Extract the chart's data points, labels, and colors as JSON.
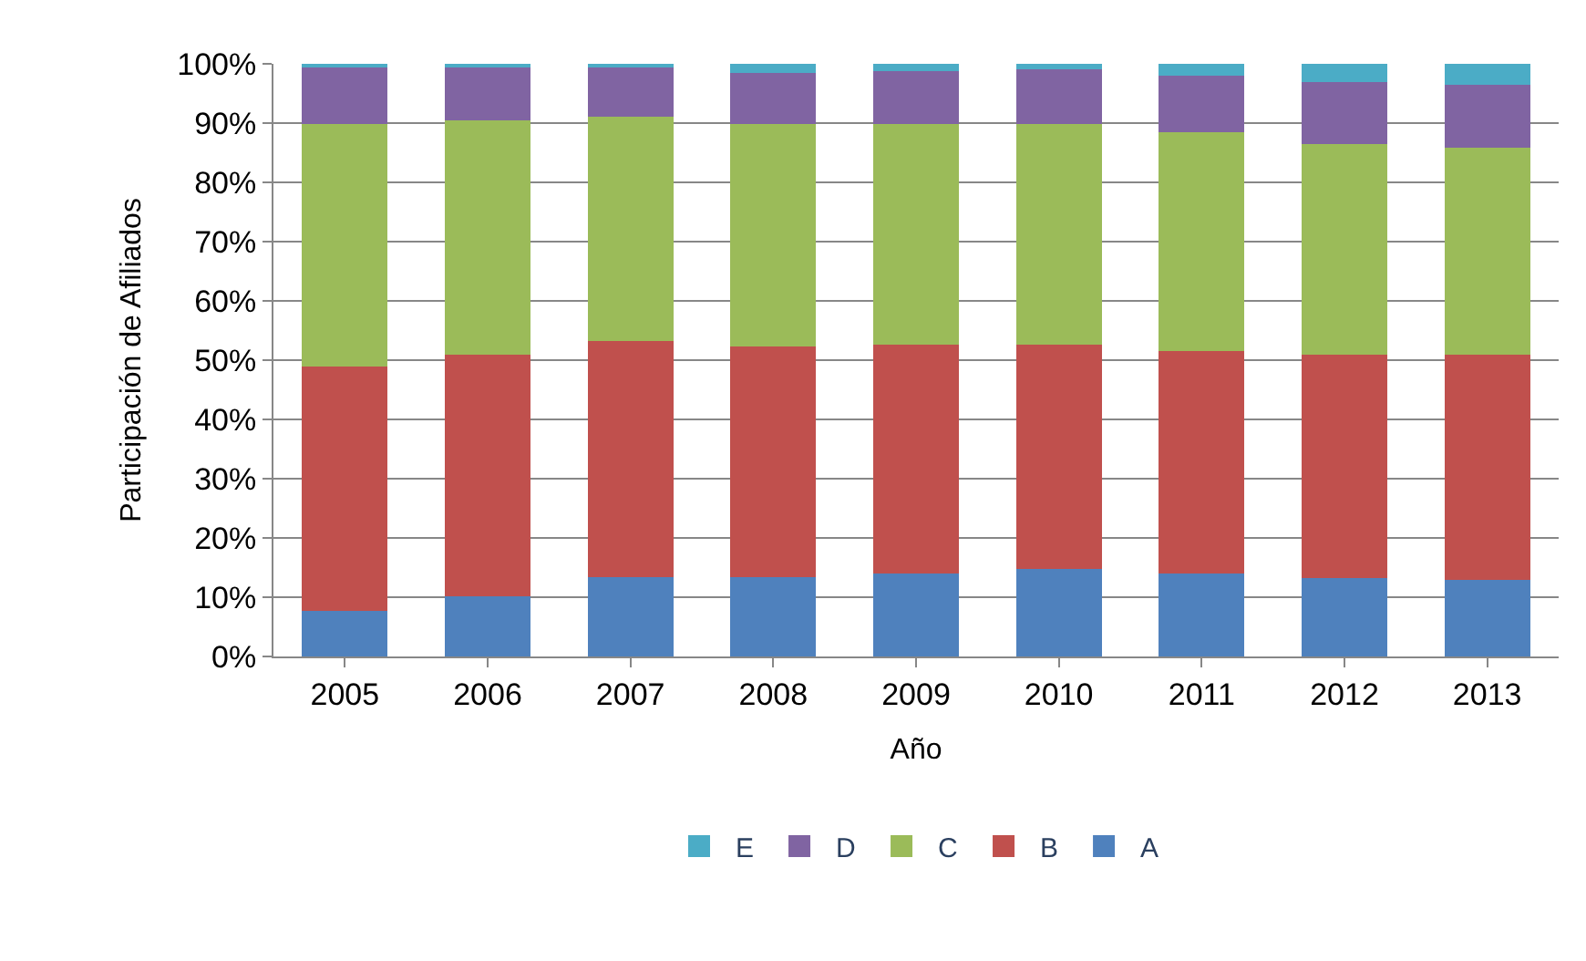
{
  "chart_data": {
    "type": "bar",
    "stacked": true,
    "xlabel": "Año",
    "ylabel": "Participación de Afiliados",
    "categories": [
      "2005",
      "2006",
      "2007",
      "2008",
      "2009",
      "2010",
      "2011",
      "2012",
      "2013"
    ],
    "series": [
      {
        "name": "A",
        "color": "#4f81bd",
        "values": [
          7.7,
          10.1,
          13.4,
          13.4,
          14.0,
          14.7,
          14.0,
          13.3,
          13.0
        ]
      },
      {
        "name": "B",
        "color": "#c0504d",
        "values": [
          41.3,
          40.8,
          39.9,
          38.9,
          38.6,
          37.9,
          37.6,
          37.6,
          37.9
        ]
      },
      {
        "name": "C",
        "color": "#9bbb59",
        "values": [
          40.8,
          39.6,
          37.8,
          37.5,
          37.2,
          37.2,
          36.8,
          35.6,
          34.9
        ]
      },
      {
        "name": "D",
        "color": "#8064a2",
        "values": [
          9.7,
          9.0,
          8.4,
          8.6,
          8.9,
          9.3,
          9.6,
          10.4,
          10.7
        ]
      },
      {
        "name": "E",
        "color": "#4bacc6",
        "values": [
          0.5,
          0.5,
          0.5,
          1.6,
          1.3,
          0.9,
          2.0,
          3.1,
          3.5
        ]
      }
    ],
    "ylim": [
      0,
      100
    ],
    "yticks": [
      {
        "value": 0,
        "label": "0%"
      },
      {
        "value": 10,
        "label": "10%"
      },
      {
        "value": 20,
        "label": "20%"
      },
      {
        "value": 30,
        "label": "30%"
      },
      {
        "value": 40,
        "label": "40%"
      },
      {
        "value": 50,
        "label": "50%"
      },
      {
        "value": 60,
        "label": "60%"
      },
      {
        "value": 70,
        "label": "70%"
      },
      {
        "value": 80,
        "label": "80%"
      },
      {
        "value": 90,
        "label": "90%"
      },
      {
        "value": 100,
        "label": "100%"
      }
    ],
    "grid": "y",
    "legend": "bottom"
  }
}
